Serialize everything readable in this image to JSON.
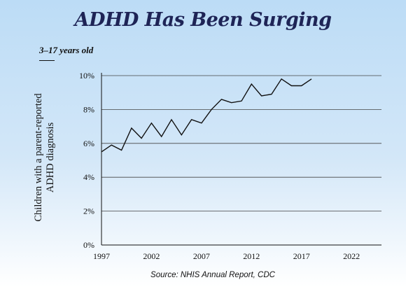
{
  "title": "ADHD Has Been Surging",
  "legend_label": "3–17 years old",
  "source": "Source: NHIS Annual Report, CDC",
  "colors": {
    "title": "#1e2456",
    "line": "#111111",
    "grid": "#444444"
  },
  "chart_data": {
    "type": "line",
    "title": "ADHD Has Been Surging",
    "ylabel": "Children with a parent-reported ADHD diagnosis",
    "ylabel_lines": [
      "Children with a parent-reported",
      "ADHD diagnosis"
    ],
    "xlabel": "",
    "xlim": [
      1997,
      2025
    ],
    "ylim": [
      0,
      10
    ],
    "x_ticks": [
      1997,
      2002,
      2007,
      2012,
      2017,
      2022
    ],
    "y_ticks": [
      0,
      2,
      4,
      6,
      8,
      10
    ],
    "y_tick_labels": [
      "0%",
      "2%",
      "4%",
      "6%",
      "8%",
      "10%"
    ],
    "grid": "horizontal",
    "series": [
      {
        "name": "3–17 years old",
        "x": [
          1997,
          1998,
          1999,
          2000,
          2001,
          2002,
          2003,
          2004,
          2005,
          2006,
          2007,
          2008,
          2009,
          2010,
          2011,
          2012,
          2013,
          2014,
          2015,
          2016,
          2017,
          2018
        ],
        "y": [
          5.5,
          5.9,
          5.6,
          6.9,
          6.3,
          7.2,
          6.4,
          7.4,
          6.5,
          7.4,
          7.2,
          8.0,
          8.6,
          8.4,
          8.5,
          9.5,
          8.8,
          8.9,
          9.8,
          9.4,
          9.4,
          9.8
        ]
      }
    ]
  }
}
